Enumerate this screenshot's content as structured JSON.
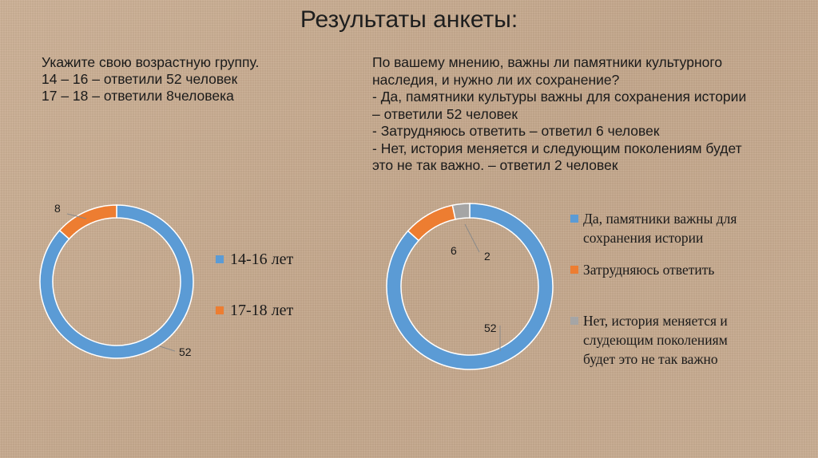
{
  "title": "Результаты анкеты:",
  "question1": {
    "lines": [
      "Укажите свою возрастную группу.",
      "14 – 16 – ответили 52 человек",
      "17 – 18 – ответили 8человека"
    ]
  },
  "question2": {
    "lines": [
      "По вашему мнению, важны ли памятники культурного",
      "наследия, и нужно ли их сохранение?",
      "- Да, памятники культуры важны для сохранения истории",
      "– ответили 52 человек",
      "- Затрудняюсь ответить – ответил 6 человек",
      "- Нет, история меняется и следующим поколениям будет",
      "это не так важно. – ответил 2 человек"
    ]
  },
  "colors": {
    "blue": "#5b9bd5",
    "orange": "#ed7d31",
    "gray": "#a5a5a5"
  },
  "chart_data": [
    {
      "type": "pie",
      "donut": true,
      "categories": [
        "14-16 лет",
        "17-18 лет"
      ],
      "values": [
        52,
        8
      ],
      "data_labels": [
        "52",
        "8"
      ],
      "colors": [
        "#5b9bd5",
        "#ed7d31"
      ],
      "legend": "right"
    },
    {
      "type": "pie",
      "donut": true,
      "categories": [
        [
          "Да, памятники важны для",
          "сохранения истории"
        ],
        [
          "Затрудняюсь ответить"
        ],
        [
          "Нет, история меняется и",
          "слудеющим поколениям",
          "будет это не так важно"
        ]
      ],
      "values": [
        52,
        6,
        2
      ],
      "data_labels": [
        "52",
        "6",
        "2"
      ],
      "colors": [
        "#5b9bd5",
        "#ed7d31",
        "#a5a5a5"
      ],
      "legend": "right"
    }
  ]
}
